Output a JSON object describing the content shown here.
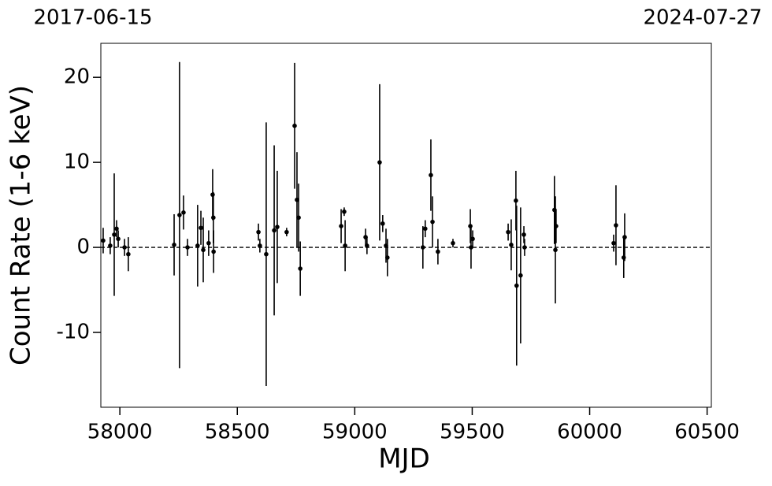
{
  "chart_data": {
    "type": "scatter",
    "annotations": [
      "2017-06-15",
      "2024-07-27"
    ],
    "xlabel": "MJD",
    "ylabel": "Count Rate (1-6 keV)",
    "x": [
      57929,
      57959,
      57976,
      57986,
      57993,
      58020,
      58036,
      58231,
      58254,
      58271,
      58288,
      58331,
      58345,
      58355,
      58378,
      58395,
      58398,
      58399,
      58590,
      58596,
      58623,
      58657,
      58670,
      58710,
      58744,
      58754,
      58761,
      58768,
      58942,
      58955,
      58959,
      59046,
      59052,
      59106,
      59119,
      59133,
      59139,
      59290,
      59300,
      59324,
      59331,
      59354,
      59418,
      59492,
      59495,
      59502,
      59653,
      59666,
      59686,
      59689,
      59706,
      59720,
      59723,
      59850,
      59854,
      59857,
      60102,
      60112,
      60145,
      60149
    ],
    "y": [
      0.8,
      0.2,
      1.5,
      2.2,
      1,
      0,
      -0.8,
      0.3,
      3.8,
      4.1,
      0,
      0.2,
      2.3,
      -0.3,
      0.5,
      6.2,
      3.5,
      -0.5,
      1.8,
      0.2,
      -0.8,
      2,
      2.4,
      1.8,
      14.3,
      5.6,
      3.5,
      -2.5,
      2.5,
      4.2,
      0.2,
      1.2,
      0.2,
      10,
      2.8,
      0.2,
      -1.2,
      0,
      2.2,
      8.5,
      3,
      -0.5,
      0.5,
      2.5,
      0,
      1,
      1.8,
      0.3,
      5.5,
      -4.5,
      -3.3,
      1.5,
      0,
      4.4,
      -0.3,
      2.5,
      0.5,
      2.6,
      -1.2,
      1.2
    ],
    "yerr": [
      1.5,
      1,
      7.2,
      1,
      1,
      1,
      2,
      3.6,
      18,
      2,
      1,
      4.8,
      2,
      3.8,
      1.5,
      3,
      3,
      2.5,
      1,
      0.8,
      15.5,
      10,
      6.6,
      0.5,
      7.4,
      5.6,
      4,
      3.2,
      2,
      0.5,
      3,
      1,
      1,
      9.2,
      1,
      2,
      2.2,
      2.5,
      1,
      4.2,
      3,
      1.5,
      0.5,
      2,
      2.5,
      1,
      1,
      3,
      3.5,
      9.4,
      8,
      1,
      1,
      4,
      6.3,
      2,
      1,
      4.7,
      2.4,
      2.8
    ],
    "color": "#000000",
    "reference_line": 0,
    "xlim": [
      57919,
      60518
    ],
    "ylim": [
      -18.8,
      24
    ],
    "xticks": [
      58000,
      58500,
      59000,
      59500,
      60000,
      60500
    ],
    "yticks": [
      -10,
      0,
      10,
      20
    ]
  }
}
